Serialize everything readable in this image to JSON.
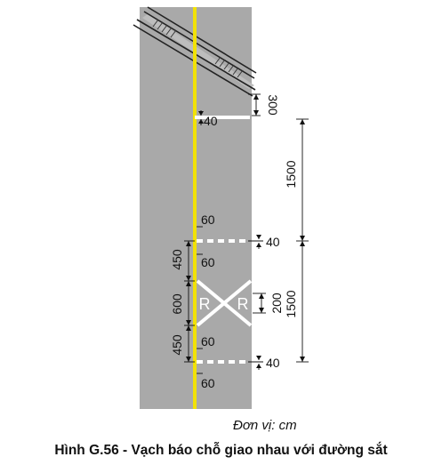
{
  "figure": {
    "caption": "Hình G.56 - Vạch báo chỗ giao nhau với đường sắt",
    "unit_note": "Đơn vị: cm",
    "crossing_letter_left": "R",
    "crossing_letter_right": "R",
    "dimensions": {
      "rail_offset": "300",
      "stop_line_width": "40",
      "gap_to_marking": "1500",
      "dash_line_top_width": "40",
      "dash_line_bottom_width": "40",
      "dash_spacing_upper": "60",
      "dash_spacing_upper_2": "60",
      "dash_spacing_lower": "60",
      "dash_spacing_lower_2": "60",
      "left_upper": "450",
      "left_middle": "600",
      "left_lower": "450",
      "letter_height": "200",
      "marking_length": "1500"
    },
    "colors": {
      "road": "#a9a9a9",
      "center_line": "#f2e205",
      "marking": "#ffffff"
    }
  }
}
